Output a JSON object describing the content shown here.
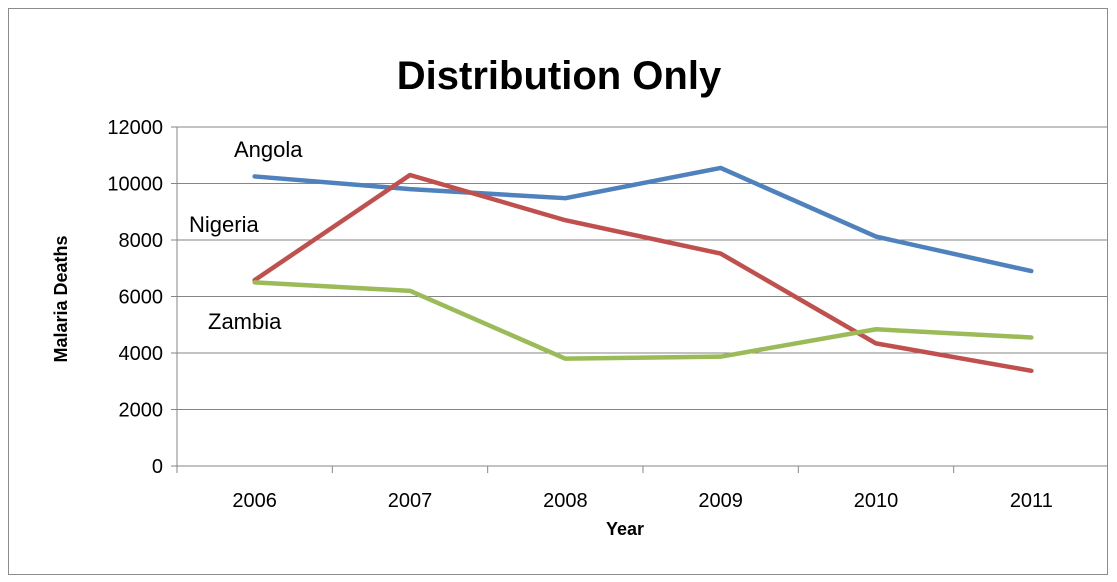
{
  "chart_data": {
    "type": "line",
    "title": "Distribution Only",
    "xlabel": "Year",
    "ylabel": "Malaria Deaths",
    "categories": [
      "2006",
      "2007",
      "2008",
      "2009",
      "2010",
      "2011"
    ],
    "ylim": [
      0,
      12000
    ],
    "yticks": [
      0,
      2000,
      4000,
      6000,
      8000,
      10000,
      12000
    ],
    "grid": "horizontal",
    "legend": "none",
    "series": [
      {
        "name": "Angola",
        "color": "#4f81bd",
        "values": [
          10250,
          9800,
          9480,
          10550,
          8120,
          6900
        ]
      },
      {
        "name": "Nigeria",
        "color": "#c0504d",
        "values": [
          6580,
          10300,
          8700,
          7520,
          4340,
          3370
        ]
      },
      {
        "name": "Zambia",
        "color": "#9bbb59",
        "values": [
          6500,
          6200,
          3800,
          3870,
          4840,
          4550
        ]
      }
    ]
  }
}
